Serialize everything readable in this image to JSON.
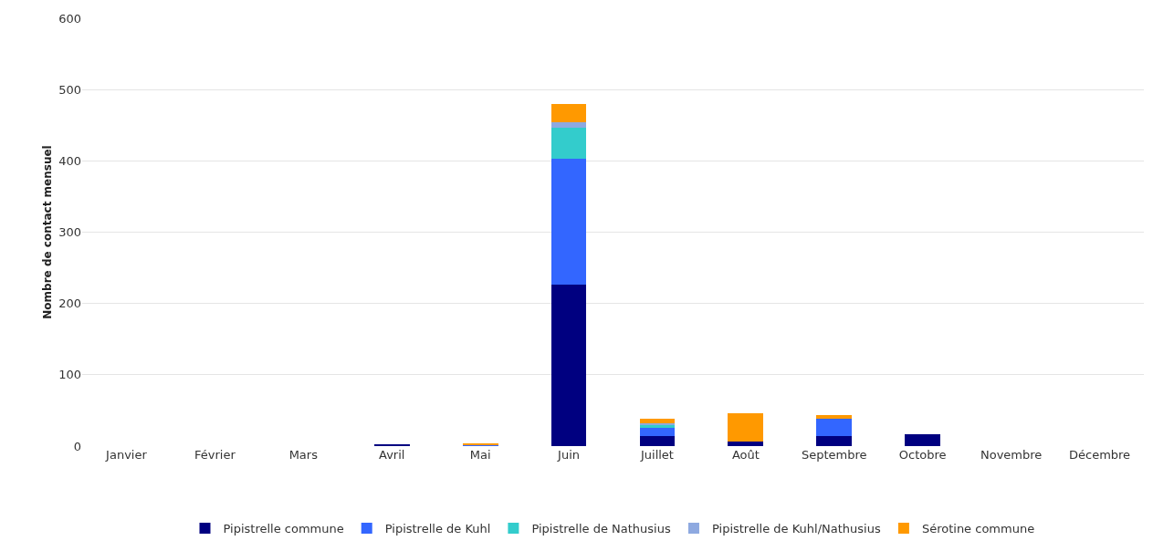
{
  "chart_data": {
    "type": "bar",
    "stacked": true,
    "ylabel": "Nombre de contact mensuel",
    "categories": [
      "Janvier",
      "Février",
      "Mars",
      "Avril",
      "Mai",
      "Juin",
      "Juillet",
      "Août",
      "Septembre",
      "Octobre",
      "Novembre",
      "Décembre"
    ],
    "series": [
      {
        "name": "Pipistrelle commune",
        "color": "#000080",
        "values": [
          0,
          0,
          0,
          2,
          0,
          226,
          14,
          6,
          14,
          16,
          0,
          0
        ]
      },
      {
        "name": "Pipistrelle de Kuhl",
        "color": "#3366ff",
        "values": [
          0,
          0,
          0,
          0,
          2,
          177,
          11,
          0,
          24,
          0,
          0,
          0
        ]
      },
      {
        "name": "Pipistrelle de Nathusius",
        "color": "#33cccc",
        "values": [
          0,
          0,
          0,
          0,
          0,
          43,
          4,
          0,
          0,
          0,
          0,
          0
        ]
      },
      {
        "name": "Pipistrelle de Kuhl/Nathusius",
        "color": "#8ea9e0",
        "values": [
          0,
          0,
          0,
          0,
          0,
          8,
          3,
          0,
          0,
          0,
          0,
          0
        ]
      },
      {
        "name": "Sérotine commune",
        "color": "#ff9900",
        "values": [
          0,
          0,
          0,
          0,
          1,
          26,
          6,
          40,
          5,
          0,
          0,
          0
        ]
      }
    ],
    "ylim": [
      0,
      600
    ],
    "yticks": [
      0,
      100,
      200,
      300,
      400,
      500,
      600
    ],
    "grid": "y",
    "legend": "bottom"
  }
}
